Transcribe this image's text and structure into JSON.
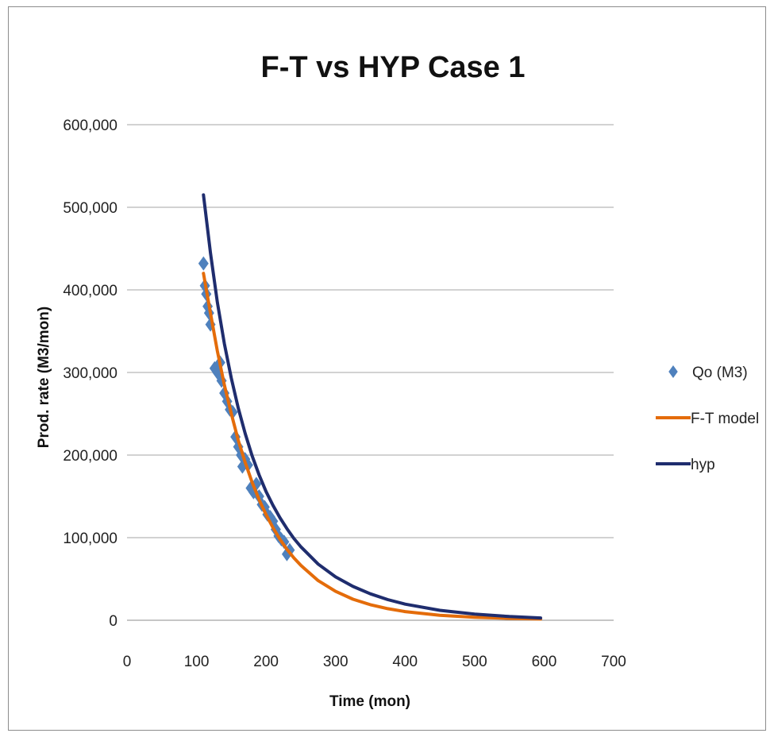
{
  "chart_data": {
    "type": "scatter",
    "title": "F-T vs HYP Case 1",
    "xlabel": "Time (mon)",
    "ylabel": "Prod. rate (M3/mon)",
    "xlim": [
      0,
      700
    ],
    "ylim": [
      0,
      600000
    ],
    "x_ticks": [
      "0",
      "100",
      "200",
      "300",
      "400",
      "500",
      "600",
      "700"
    ],
    "y_ticks": [
      "0",
      "100,000",
      "200,000",
      "300,000",
      "400,000",
      "500,000",
      "600,000"
    ],
    "grid": "horizontal",
    "legend_position": "right",
    "series": [
      {
        "name": "Qo (M3)",
        "kind": "scatter",
        "marker": "diamond",
        "color": "#4f81bd",
        "points": [
          [
            110,
            432000
          ],
          [
            112,
            405000
          ],
          [
            114,
            395000
          ],
          [
            116,
            380000
          ],
          [
            118,
            372000
          ],
          [
            120,
            358000
          ],
          [
            126,
            305000
          ],
          [
            130,
            300000
          ],
          [
            134,
            312000
          ],
          [
            136,
            290000
          ],
          [
            140,
            275000
          ],
          [
            144,
            265000
          ],
          [
            148,
            255000
          ],
          [
            152,
            252000
          ],
          [
            156,
            222000
          ],
          [
            160,
            210000
          ],
          [
            164,
            200000
          ],
          [
            166,
            186000
          ],
          [
            170,
            195000
          ],
          [
            174,
            188000
          ],
          [
            178,
            160000
          ],
          [
            182,
            155000
          ],
          [
            186,
            165000
          ],
          [
            190,
            150000
          ],
          [
            194,
            140000
          ],
          [
            198,
            137000
          ],
          [
            202,
            128000
          ],
          [
            206,
            125000
          ],
          [
            210,
            120000
          ],
          [
            214,
            110000
          ],
          [
            218,
            102000
          ],
          [
            222,
            98000
          ],
          [
            226,
            95000
          ],
          [
            230,
            80000
          ],
          [
            234,
            85000
          ]
        ]
      },
      {
        "name": "F-T model",
        "kind": "line",
        "color": "#e46c0a",
        "points": [
          [
            110,
            420000
          ],
          [
            120,
            372000
          ],
          [
            130,
            326000
          ],
          [
            140,
            285000
          ],
          [
            150,
            250000
          ],
          [
            160,
            218000
          ],
          [
            170,
            191000
          ],
          [
            180,
            167000
          ],
          [
            190,
            146000
          ],
          [
            200,
            128000
          ],
          [
            210,
            112000
          ],
          [
            220,
            98000
          ],
          [
            230,
            86000
          ],
          [
            240,
            75500
          ],
          [
            250,
            66500
          ],
          [
            275,
            48000
          ],
          [
            300,
            35000
          ],
          [
            325,
            25500
          ],
          [
            350,
            18800
          ],
          [
            375,
            14000
          ],
          [
            400,
            10500
          ],
          [
            450,
            6100
          ],
          [
            500,
            3700
          ],
          [
            550,
            2300
          ],
          [
            595,
            1500
          ]
        ]
      },
      {
        "name": "hyp",
        "kind": "line",
        "color": "#1f2d6e",
        "points": [
          [
            110,
            515000
          ],
          [
            120,
            445000
          ],
          [
            130,
            385000
          ],
          [
            140,
            335000
          ],
          [
            150,
            293000
          ],
          [
            160,
            257000
          ],
          [
            170,
            226000
          ],
          [
            180,
            199000
          ],
          [
            190,
            176000
          ],
          [
            200,
            156000
          ],
          [
            210,
            139000
          ],
          [
            220,
            124000
          ],
          [
            230,
            111000
          ],
          [
            240,
            99000
          ],
          [
            250,
            89000
          ],
          [
            275,
            68000
          ],
          [
            300,
            52500
          ],
          [
            325,
            41000
          ],
          [
            350,
            32000
          ],
          [
            375,
            25000
          ],
          [
            400,
            19500
          ],
          [
            450,
            12000
          ],
          [
            500,
            7500
          ],
          [
            550,
            4500
          ],
          [
            595,
            2800
          ]
        ]
      }
    ]
  }
}
